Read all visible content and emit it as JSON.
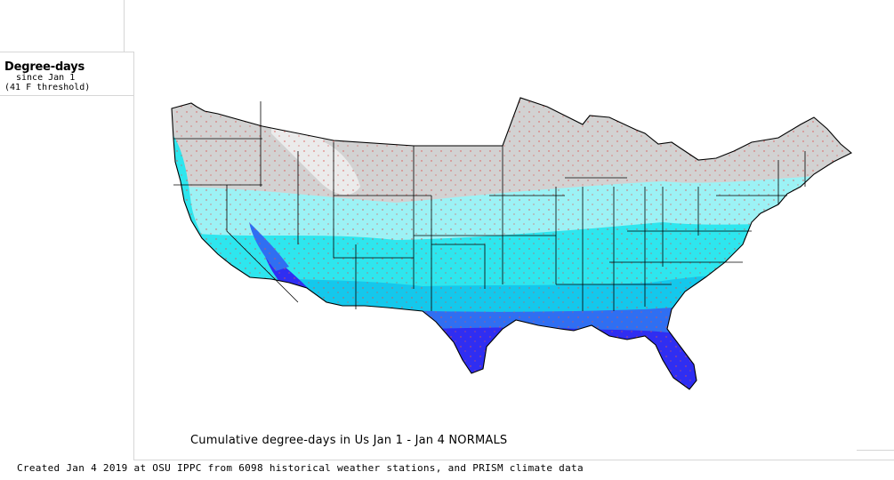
{
  "legend": {
    "title": "Degree-days",
    "subtitle_line1": "since Jan 1",
    "subtitle_line2": "(41 F threshold)"
  },
  "map": {
    "caption": "Cumulative degree-days in Us  Jan 1 - Jan 4 NORMALS",
    "color_scale": {
      "zero": "#d2d2d2",
      "low": "#9cf2f5",
      "mid_low": "#2ee6ee",
      "mid": "#14c8ec",
      "mid_high": "#2f6ff2",
      "high": "#2f2ef2"
    },
    "border_color": "#000000",
    "station_dot_color": "#d9534f"
  },
  "footer": {
    "credit": "Created Jan 4 2019 at OSU IPPC from 6098 historical weather stations, and PRISM climate data"
  }
}
